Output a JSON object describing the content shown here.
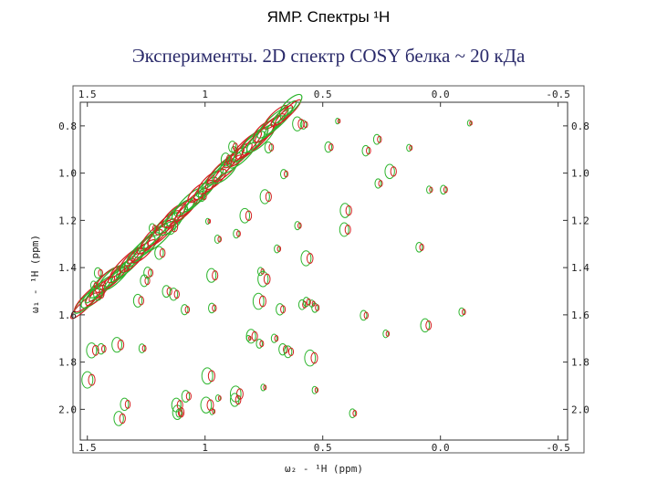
{
  "chart_data": {
    "type": "contour",
    "title": "ЯМР. Спектры ¹Н",
    "subtitle": "Эксперименты. 2D спектр COSY белка ~ 20 кДа",
    "x_label": "ω₂ - ¹H (ppm)",
    "y_label": "ω₁ - ¹H (ppm)",
    "xlim": [
      1.53,
      -0.54
    ],
    "ylim": [
      0.7,
      2.13
    ],
    "xticks": [
      1.5,
      1.0,
      0.5,
      {
        "value": 0.0,
        "label": "0.0"
      },
      -0.5
    ],
    "yticks": [
      0.8,
      {
        "value": 1.0,
        "label": "1.0"
      },
      1.2,
      1.4,
      1.6,
      1.8,
      {
        "value": 2.0,
        "label": "2.0"
      }
    ],
    "colors": [
      "#2db52d",
      "#d42020"
    ]
  }
}
